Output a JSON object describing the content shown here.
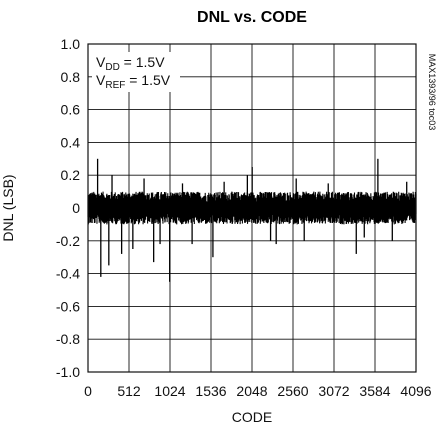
{
  "chart_data": {
    "type": "line",
    "title": "DNL vs. CODE",
    "xlabel": "CODE",
    "ylabel": "DNL (LSB)",
    "xlim": [
      0,
      4096
    ],
    "ylim": [
      -1.0,
      1.0
    ],
    "grid": true,
    "x_ticks": [
      0,
      512,
      1024,
      1536,
      2048,
      2560,
      3072,
      3584,
      4096
    ],
    "x_tick_labels": [
      "0",
      "512",
      "1024",
      "1536",
      "2048",
      "2560",
      "3072",
      "3584",
      "4096"
    ],
    "y_ticks": [
      1.0,
      0.8,
      0.6,
      0.4,
      0.2,
      0,
      -0.2,
      -0.4,
      -0.6,
      -0.8,
      -1.0
    ],
    "y_tick_labels": [
      "1.0",
      "0.8",
      "0.6",
      "0.4",
      "0.2",
      "0",
      "-0.2",
      "-0.4",
      "-0.6",
      "-0.8",
      "-1.0"
    ],
    "annotations": {
      "vdd": {
        "main": "V",
        "sub": "DD",
        "rest": " = 1.5V"
      },
      "vref": {
        "main": "V",
        "sub": "REF",
        "rest": " = 1.5V"
      }
    },
    "side_label": "MAX1393/96 toc03",
    "series": [
      {
        "band_upper": 0.1,
        "band_lower": -0.1,
        "spikes": [
          {
            "x": 120,
            "y": 0.3
          },
          {
            "x": 160,
            "y": -0.42
          },
          {
            "x": 260,
            "y": -0.35
          },
          {
            "x": 300,
            "y": 0.2
          },
          {
            "x": 420,
            "y": -0.28
          },
          {
            "x": 560,
            "y": -0.25
          },
          {
            "x": 700,
            "y": 0.18
          },
          {
            "x": 820,
            "y": -0.33
          },
          {
            "x": 900,
            "y": -0.22
          },
          {
            "x": 1020,
            "y": -0.45
          },
          {
            "x": 1180,
            "y": 0.15
          },
          {
            "x": 1300,
            "y": -0.22
          },
          {
            "x": 1560,
            "y": -0.3
          },
          {
            "x": 1700,
            "y": 0.16
          },
          {
            "x": 1990,
            "y": 0.2
          },
          {
            "x": 2050,
            "y": 0.25
          },
          {
            "x": 2280,
            "y": -0.2
          },
          {
            "x": 2350,
            "y": -0.22
          },
          {
            "x": 2600,
            "y": 0.18
          },
          {
            "x": 2700,
            "y": -0.2
          },
          {
            "x": 3000,
            "y": 0.15
          },
          {
            "x": 3350,
            "y": -0.28
          },
          {
            "x": 3450,
            "y": -0.18
          },
          {
            "x": 3620,
            "y": 0.3
          },
          {
            "x": 3800,
            "y": -0.2
          },
          {
            "x": 3980,
            "y": 0.16
          }
        ]
      }
    ]
  }
}
